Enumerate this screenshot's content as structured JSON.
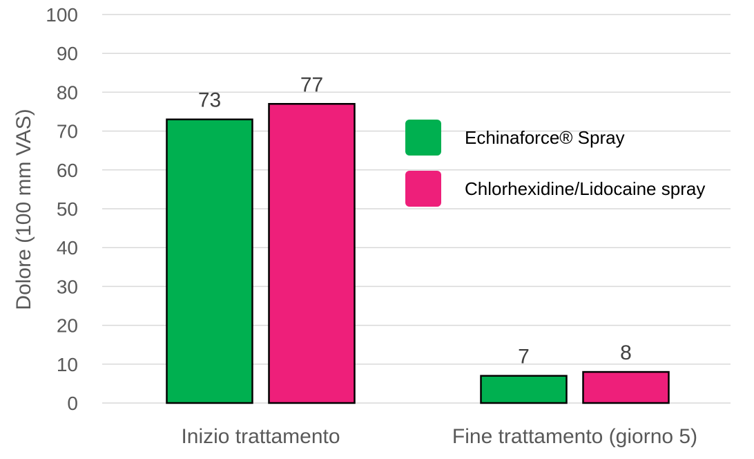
{
  "colors": {
    "series1": "#00b050",
    "series2": "#ee1f7a",
    "grid": "#d9d9d9",
    "text": "#595959",
    "bar_outline": "#000000"
  },
  "chart_data": {
    "type": "bar",
    "title": "",
    "xlabel": "",
    "ylabel": "Dolore (100 mm VAS)",
    "ylim": [
      0,
      100
    ],
    "yticks": [
      0,
      10,
      20,
      30,
      40,
      50,
      60,
      70,
      80,
      90,
      100
    ],
    "grid": true,
    "legend_position": "right",
    "categories": [
      "Inizio trattamento",
      "Fine trattamento (giorno 5)"
    ],
    "series": [
      {
        "name": "Echinaforce® Spray",
        "values": [
          73,
          7
        ]
      },
      {
        "name": "Chlorhexidine/Lidocaine spray",
        "values": [
          77,
          8
        ]
      }
    ],
    "data_labels": true
  }
}
